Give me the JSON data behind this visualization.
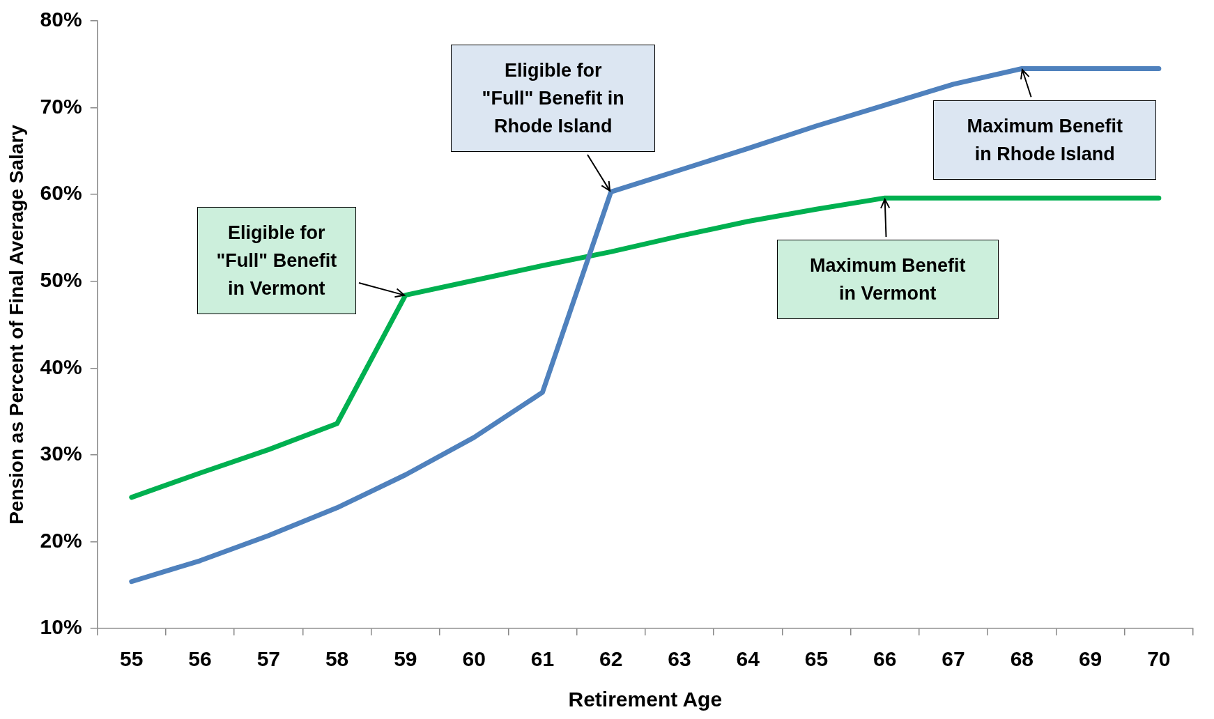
{
  "chart_data": {
    "type": "line",
    "xlabel": "Retirement Age",
    "ylabel": "Pension as Percent of Final Average Salary",
    "categories": [
      "55",
      "56",
      "57",
      "58",
      "59",
      "60",
      "61",
      "62",
      "63",
      "64",
      "65",
      "66",
      "67",
      "68",
      "69",
      "70"
    ],
    "series": [
      {
        "color": "#4f81bd",
        "values": [
          15.4,
          17.8,
          20.7,
          23.9,
          27.7,
          32.0,
          37.2,
          60.3,
          62.8,
          65.3,
          67.9,
          70.3,
          72.7,
          74.5,
          74.5,
          74.5
        ]
      },
      {
        "color": "#00b050",
        "values": [
          25.1,
          27.9,
          30.6,
          33.6,
          48.4,
          50.1,
          51.8,
          53.4,
          55.2,
          56.9,
          58.3,
          59.6,
          59.6,
          59.6,
          59.6,
          59.6
        ]
      }
    ],
    "ylim": [
      10,
      80
    ],
    "yticks": [
      {
        "value": 10,
        "label": "10%"
      },
      {
        "value": 20,
        "label": "20%"
      },
      {
        "value": 30,
        "label": "30%"
      },
      {
        "value": 40,
        "label": "40%"
      },
      {
        "value": 50,
        "label": "50%"
      },
      {
        "value": 60,
        "label": "60%"
      },
      {
        "value": 70,
        "label": "70%"
      },
      {
        "value": 80,
        "label": "80%"
      }
    ],
    "grid": false,
    "legend": false,
    "marker": "none",
    "line_style": "solid",
    "annotations": [
      {
        "text": "Eligible for \"Full\" Benefit in Vermont",
        "x": "59",
        "y": 48.4
      },
      {
        "text": "Eligible for \"Full\" Benefit in Rhode Island",
        "x": "62",
        "y": 60.3
      },
      {
        "text": "Maximum Benefit in Rhode Island",
        "x": "68",
        "y": 74.5
      },
      {
        "text": "Maximum Benefit in Vermont",
        "x": "66",
        "y": 59.6
      }
    ]
  }
}
